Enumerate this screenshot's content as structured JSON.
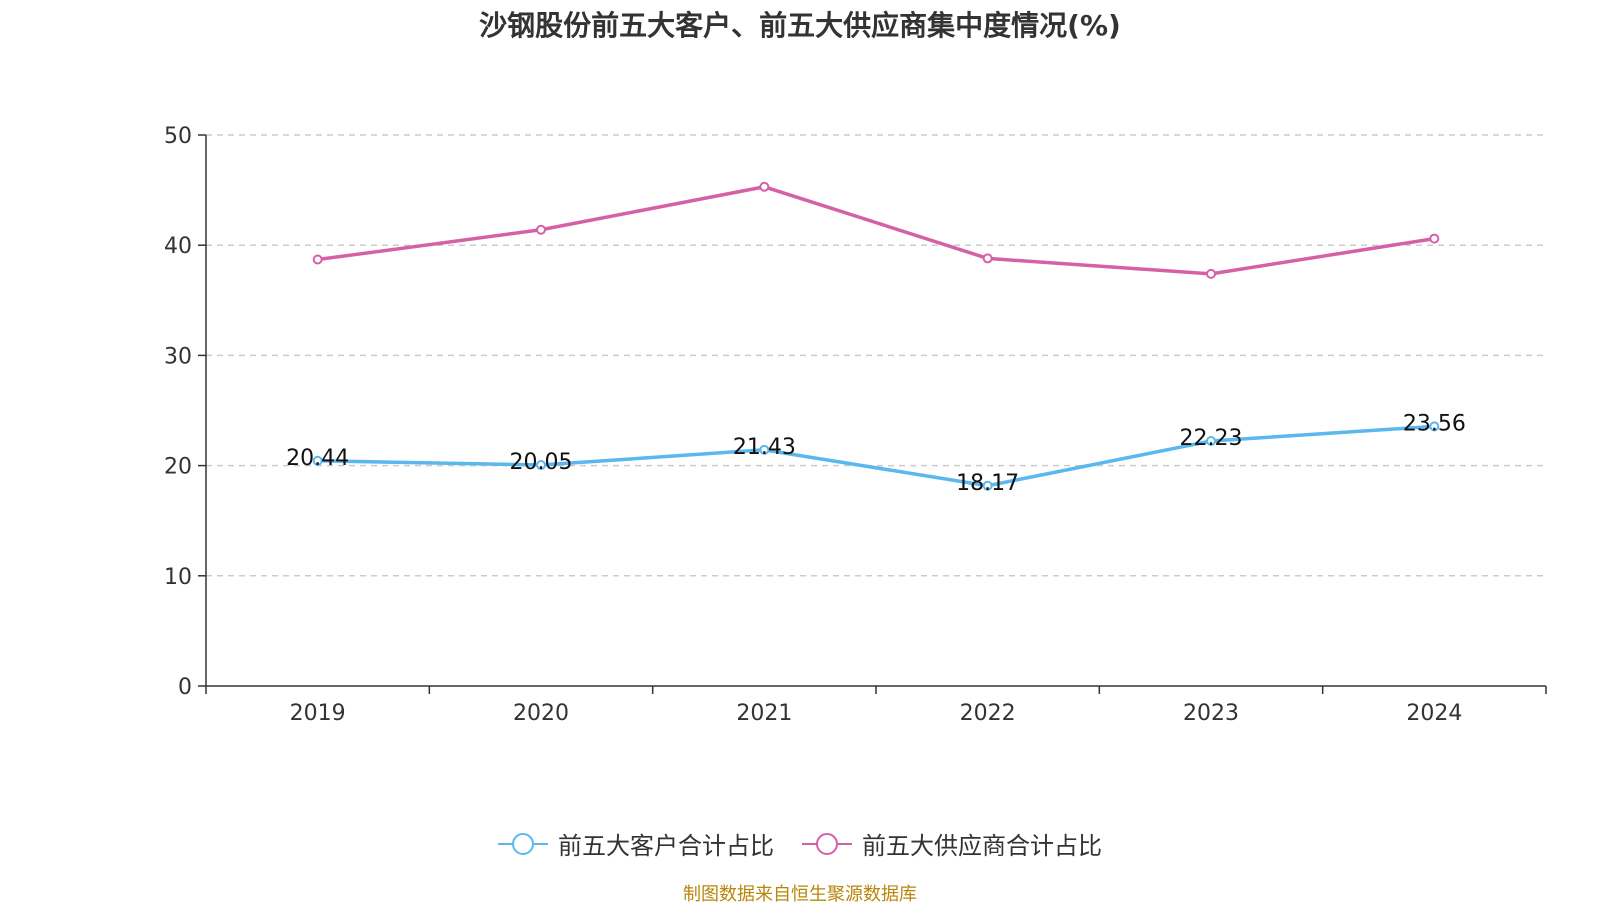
{
  "chart_data": {
    "type": "line",
    "title": "沙钢股份前五大客户、前五大供应商集中度情况(%)",
    "categories": [
      "2019",
      "2020",
      "2021",
      "2022",
      "2023",
      "2024"
    ],
    "ylim": [
      0,
      50
    ],
    "yticks": [
      0,
      10,
      20,
      30,
      40,
      50
    ],
    "grid": true,
    "legend_position": "bottom",
    "series": [
      {
        "name": "前五大客户合计占比",
        "color": "#5ab8ee",
        "values": [
          20.44,
          20.05,
          21.43,
          18.17,
          22.23,
          23.56
        ],
        "labels": [
          "20.44",
          "20.05",
          "21.43",
          "18.17",
          "22.23",
          "23.56"
        ]
      },
      {
        "name": "前五大供应商合计占比",
        "color": "#d660a8",
        "values": [
          38.7,
          41.4,
          45.3,
          38.8,
          37.4,
          40.6
        ]
      }
    ]
  },
  "legend": {
    "customers_label": "前五大客户合计占比",
    "suppliers_label": "前五大供应商合计占比"
  },
  "source_note": "制图数据来自恒生聚源数据库",
  "axis_color": "#333333",
  "grid_color": "#cccccc"
}
